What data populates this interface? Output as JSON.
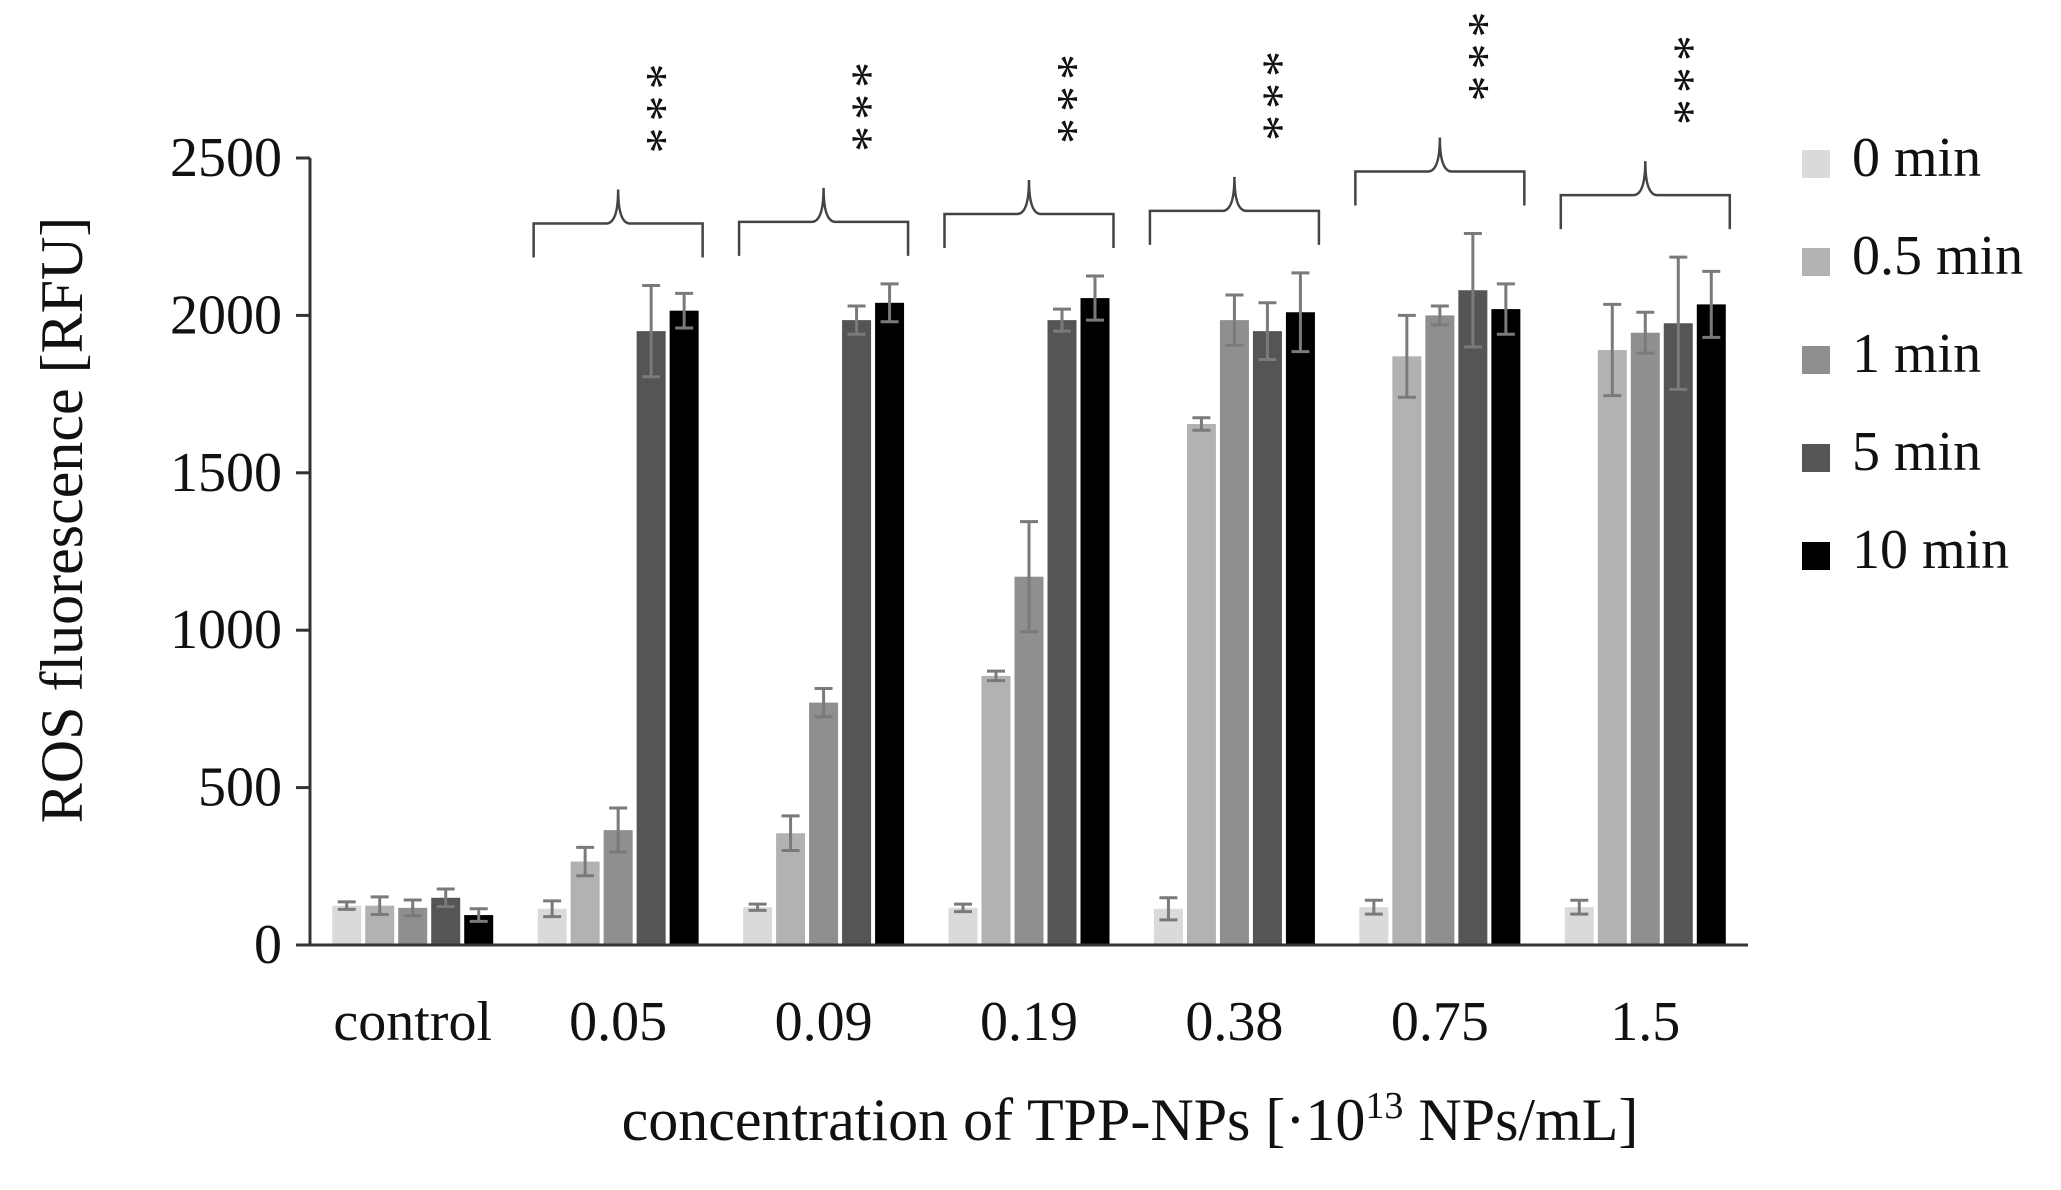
{
  "chart_data": {
    "type": "bar",
    "title": "",
    "ylabel": "ROS fluorescence [RFU]",
    "xlabel_prefix": "concentration of TPP-NPs [·10",
    "xlabel_sup": "13",
    "xlabel_suffix": " NPs/mL]",
    "ylim": [
      0,
      2500
    ],
    "yticks": [
      0,
      500,
      1000,
      1500,
      2000,
      2500
    ],
    "categories": [
      "control",
      "0.05",
      "0.09",
      "0.19",
      "0.38",
      "0.75",
      "1.5"
    ],
    "significance": [
      "",
      "***",
      "***",
      "***",
      "***",
      "***",
      "***"
    ],
    "legend_position": "right",
    "series": [
      {
        "name": "0 min",
        "color": "#dadada",
        "values": [
          125,
          115,
          120,
          118,
          115,
          120,
          120
        ],
        "errors": [
          12,
          25,
          10,
          12,
          35,
          22,
          22
        ]
      },
      {
        "name": "0.5 min",
        "color": "#b2b2b2",
        "values": [
          125,
          265,
          355,
          855,
          1655,
          1870,
          1890
        ],
        "errors": [
          28,
          45,
          55,
          15,
          20,
          130,
          145
        ]
      },
      {
        "name": "1 min",
        "color": "#8f8f8f",
        "values": [
          118,
          365,
          770,
          1170,
          1985,
          2000,
          1945
        ],
        "errors": [
          25,
          70,
          45,
          175,
          80,
          30,
          65
        ]
      },
      {
        "name": "5 min",
        "color": "#555555",
        "values": [
          150,
          1950,
          1985,
          1985,
          1950,
          2080,
          1975
        ],
        "errors": [
          28,
          145,
          45,
          35,
          90,
          180,
          210
        ]
      },
      {
        "name": "10 min",
        "color": "#000000",
        "values": [
          95,
          2015,
          2040,
          2055,
          2010,
          2020,
          2035
        ],
        "errors": [
          20,
          55,
          60,
          70,
          125,
          80,
          105
        ]
      }
    ]
  }
}
